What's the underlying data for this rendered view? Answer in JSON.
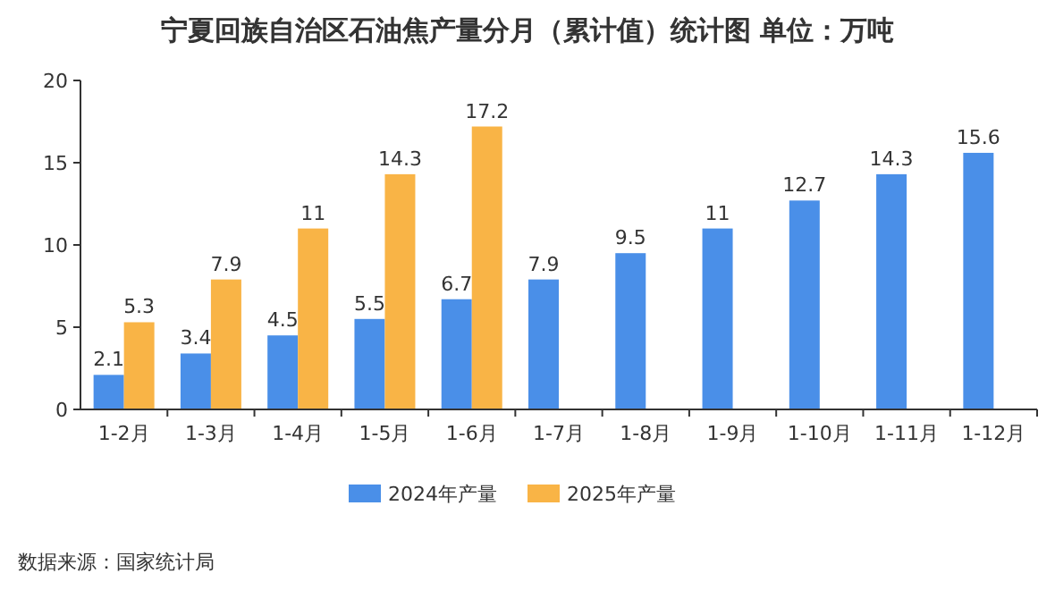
{
  "chart_data": {
    "type": "bar",
    "title": "宁夏回族自治区石油焦产量分月（累计值）统计图 单位：万吨",
    "categories": [
      "1-2月",
      "1-3月",
      "1-4月",
      "1-5月",
      "1-6月",
      "1-7月",
      "1-8月",
      "1-9月",
      "1-10月",
      "1-11月",
      "1-12月"
    ],
    "series": [
      {
        "name": "2024年产量",
        "color": "#4a8fe8",
        "values": [
          2.1,
          3.4,
          4.5,
          5.5,
          6.7,
          7.9,
          9.5,
          11,
          12.7,
          14.3,
          15.6
        ]
      },
      {
        "name": "2025年产量",
        "color": "#f9b446",
        "values": [
          5.3,
          7.9,
          11,
          14.3,
          17.2,
          null,
          null,
          null,
          null,
          null,
          null
        ]
      }
    ],
    "ylim": [
      0,
      20
    ],
    "yticks": [
      0,
      5,
      10,
      15,
      20
    ],
    "data_labels": true,
    "legend": "bottom",
    "annotations": [
      "数据来源：国家统计局"
    ]
  }
}
